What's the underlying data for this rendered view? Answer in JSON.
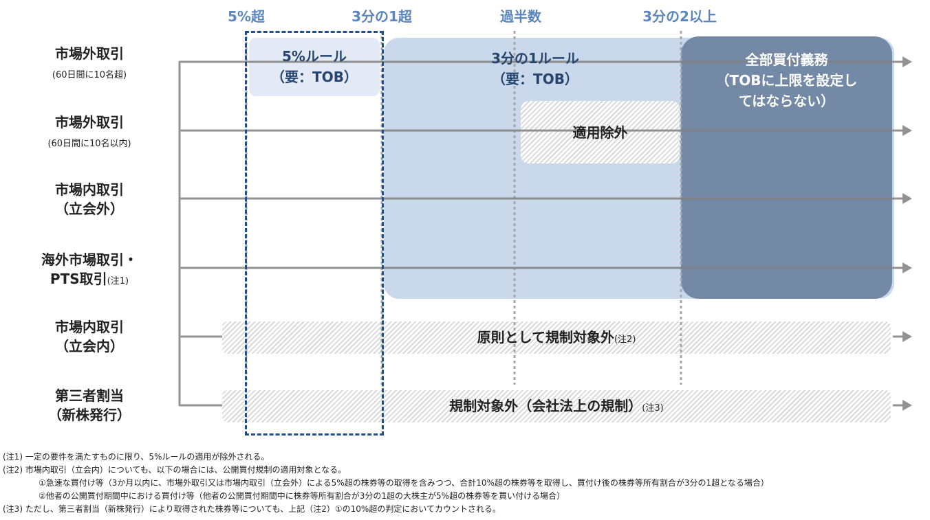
{
  "thresholds": [
    "5%超",
    "3分の1超",
    "過半数",
    "3分の2以上"
  ],
  "rows": [
    {
      "label": "市場外取引",
      "sub": "(60日間に10名超)"
    },
    {
      "label": "市場外取引",
      "sub": "(60日間に10名以内)"
    },
    {
      "label": "市場内取引",
      "sub": "（立会外）"
    },
    {
      "label": "海外市場取引・",
      "sub": "PTS取引",
      "note": "(注1)"
    },
    {
      "label": "市場内取引",
      "sub": "（立会内）"
    },
    {
      "label": "第三者割当",
      "sub": "（新株発行）"
    }
  ],
  "boxes": {
    "five_pct": {
      "line1": "5%ルール",
      "line2": "（要：TOB）"
    },
    "one_third": {
      "line1": "3分の1ルール",
      "line2": "（要：TOB）"
    },
    "exempt": "適用除外",
    "full": {
      "line1": "全部買付義務",
      "line2": "（TOBに上限を設定し",
      "line3": "てはならない）"
    },
    "row5": {
      "text": "原則として規制対象外",
      "note": "(注2)"
    },
    "row6": {
      "text": "規制対象外（会社法上の規制）",
      "note": "(注3)"
    }
  },
  "notes": [
    "(注1) 一定の要件を満たすものに限り、5%ルールの適用が除外される。",
    "(注2) 市場内取引（立会内）についても、以下の場合には、公開買付規制の適用対象となる。",
    "①急速な買付け等（3か月以内に、市場外取引又は市場内取引（立会外）による5%超の株券等の取得を含みつつ、合計10%超の株券等を取得し、買付け後の株券等所有割合が3分の1超となる場合）",
    "②他者の公開買付期間中における買付け等（他者の公開買付期間中に株券等所有割合が3分の1超の大株主が5%超の株券等を買い付ける場合）",
    "(注3) ただし、第三者割当（新株発行）により取得された株券等についても、上記（注2）①の10%超の判定においてカウントされる。"
  ],
  "colors": {
    "header": "#5b86bd",
    "five_box": "#e3eaf5",
    "third_box": "#c9d8ea",
    "full_box": "#7389a6",
    "dashed": "#1f4e8c",
    "line": "#808080"
  }
}
